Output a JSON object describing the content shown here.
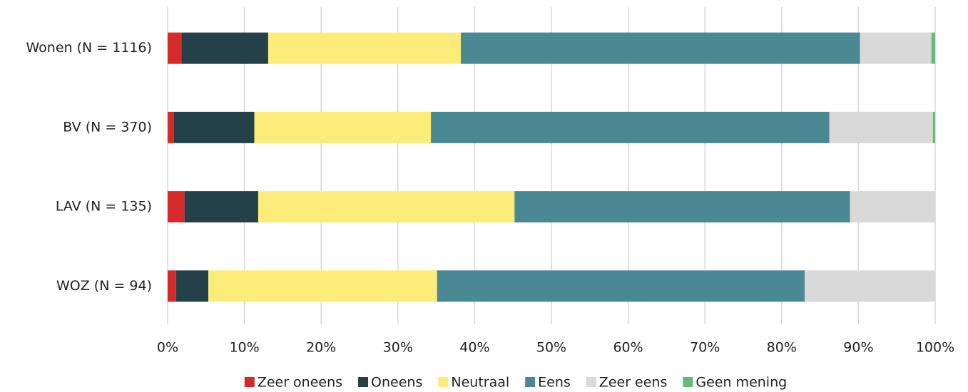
{
  "chart_data": {
    "type": "stacked-bar-horizontal",
    "categories": [
      "Wonen (N = 1116)",
      "BV (N = 370)",
      "LAV (N = 135)",
      "WOZ (N = 94)"
    ],
    "series": [
      {
        "name": "Zeer oneens",
        "color": "#d42a2a",
        "values": [
          1.8,
          0.8,
          2.2,
          1.1
        ]
      },
      {
        "name": "Oneens",
        "color": "#24414a",
        "values": [
          11.3,
          10.5,
          9.6,
          4.2
        ]
      },
      {
        "name": "Neutraal",
        "color": "#fcec7a",
        "values": [
          25.1,
          23.0,
          33.4,
          29.8
        ]
      },
      {
        "name": "Eens",
        "color": "#4a8894",
        "values": [
          52.0,
          51.9,
          43.7,
          47.9
        ]
      },
      {
        "name": "Zeer eens",
        "color": "#d9d9d9",
        "values": [
          9.3,
          13.5,
          11.1,
          17.0
        ]
      },
      {
        "name": "Geen mening",
        "color": "#66bb7a",
        "values": [
          0.5,
          0.3,
          0,
          0
        ]
      }
    ],
    "xlim": [
      0,
      100
    ],
    "xticks": [
      {
        "value": 0,
        "label": "0%"
      },
      {
        "value": 10,
        "label": "10%"
      },
      {
        "value": 20,
        "label": "20%"
      },
      {
        "value": 30,
        "label": "30%"
      },
      {
        "value": 40,
        "label": "40%"
      },
      {
        "value": 50,
        "label": "50%"
      },
      {
        "value": 60,
        "label": "60%"
      },
      {
        "value": 70,
        "label": "70%"
      },
      {
        "value": 80,
        "label": "80%"
      },
      {
        "value": 90,
        "label": "90%"
      },
      {
        "value": 100,
        "label": "100%"
      }
    ],
    "grid": true,
    "legend": "bottom"
  }
}
